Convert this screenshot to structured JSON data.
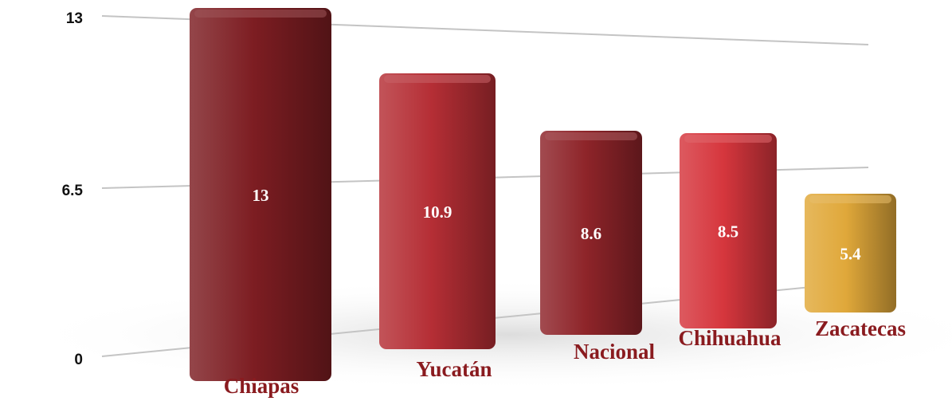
{
  "chart_data": {
    "type": "bar",
    "categories": [
      "Chiapas",
      "Yucatán",
      "Nacional",
      "Chihuahua",
      "Zacatecas"
    ],
    "values": [
      13,
      10.9,
      8.6,
      8.5,
      5.4
    ],
    "value_labels": [
      "13",
      "10.9",
      "8.6",
      "8.5",
      "5.4"
    ],
    "y_ticks": [
      "0",
      "6.5",
      "13"
    ],
    "ylim": [
      0,
      13
    ],
    "grid": true,
    "colors": {
      "Chiapas": "#7d1d22",
      "Yucatán": "#b52e35",
      "Nacional": "#8e2429",
      "Chihuahua": "#d6363d",
      "Zacatecas": "#e0a83a",
      "category_text": "#8a1b1f"
    }
  }
}
